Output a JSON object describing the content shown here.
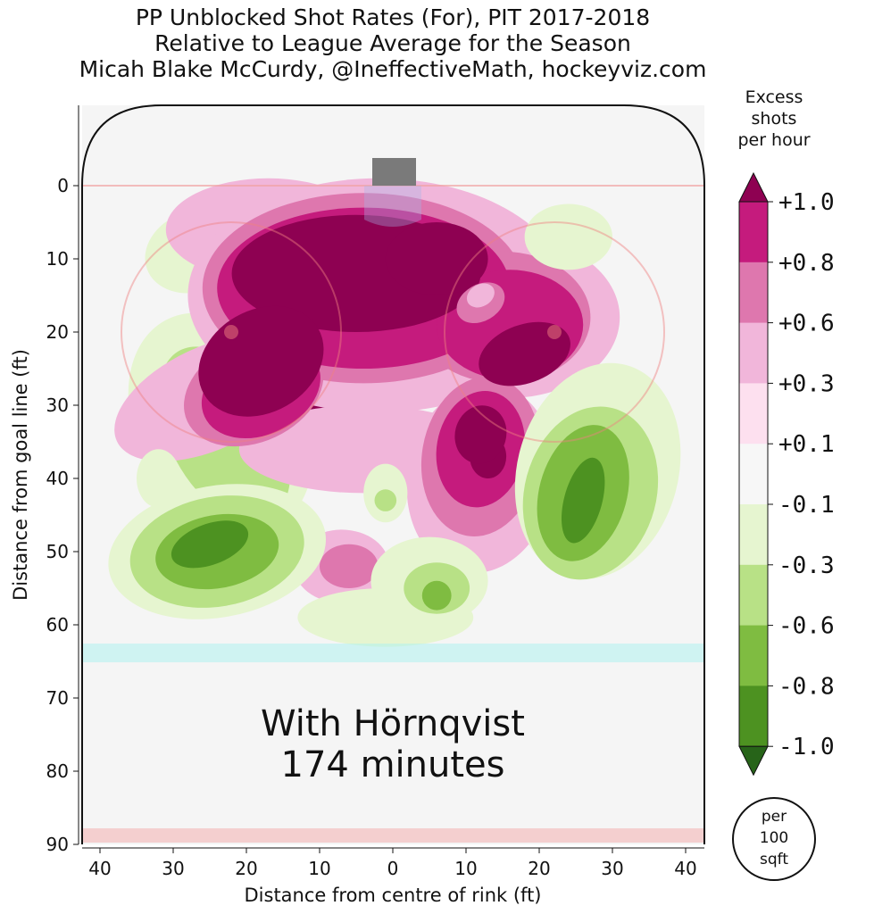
{
  "titles": [
    "PP Unblocked Shot Rates (For), PIT 2017-2018",
    "Relative to League Average for the Season",
    "Micah Blake McCurdy, @IneffectiveMath, hockeyviz.com"
  ],
  "chart_data": {
    "type": "heatmap",
    "xlabel": "Distance from centre of rink (ft)",
    "ylabel": "Distance from goal line (ft)",
    "xlim": [
      -42.5,
      42.5
    ],
    "ylim": [
      90,
      -11
    ],
    "x_ticks": [
      {
        "value": -40,
        "label": "40"
      },
      {
        "value": -30,
        "label": "30"
      },
      {
        "value": -20,
        "label": "20"
      },
      {
        "value": -10,
        "label": "10"
      },
      {
        "value": 0,
        "label": "0"
      },
      {
        "value": 10,
        "label": "10"
      },
      {
        "value": 20,
        "label": "20"
      },
      {
        "value": 30,
        "label": "30"
      },
      {
        "value": 40,
        "label": "40"
      }
    ],
    "y_ticks": [
      {
        "value": 0,
        "label": "0"
      },
      {
        "value": 10,
        "label": "10"
      },
      {
        "value": 20,
        "label": "20"
      },
      {
        "value": 30,
        "label": "30"
      },
      {
        "value": 40,
        "label": "40"
      },
      {
        "value": 50,
        "label": "50"
      },
      {
        "value": 60,
        "label": "60"
      },
      {
        "value": 70,
        "label": "70"
      },
      {
        "value": 80,
        "label": "80"
      },
      {
        "value": 90,
        "label": "90"
      }
    ],
    "colorbar": {
      "title": [
        "Excess",
        "shots",
        "per hour"
      ],
      "labels": [
        "+1.0",
        "+0.8",
        "+0.6",
        "+0.3",
        "+0.1",
        "-0.1",
        "-0.3",
        "-0.6",
        "-0.8",
        "-1.0"
      ],
      "colors": [
        "#8e0152",
        "#c51b7d",
        "#de77ae",
        "#f1b6da",
        "#fde0ef",
        "#f7f7f7",
        "#e6f5d0",
        "#b8e186",
        "#7fbc41",
        "#4d9221",
        "#276419"
      ]
    },
    "annotation": [
      "With Hörnqvist",
      "174 minutes"
    ],
    "unit_badge": [
      "per",
      "100",
      "sqft"
    ],
    "regions": [
      {
        "level": -1,
        "x": -23.5,
        "y": 32.5,
        "rx": 11.5,
        "ry": 16,
        "rot": -28
      },
      {
        "level": -2,
        "x": -23,
        "y": 34,
        "rx": 7.5,
        "ry": 13,
        "rot": -28
      },
      {
        "level": 3,
        "x": -17,
        "y": 21,
        "rx": 6.5,
        "ry": 10,
        "rot": -30
      },
      {
        "level": 4,
        "x": -10,
        "y": 25,
        "rx": 11,
        "ry": 17,
        "rot": -20
      },
      {
        "level": -1,
        "x": -27,
        "y": 9,
        "rx": 7,
        "ry": 5.5,
        "rot": -20
      },
      {
        "level": 1,
        "x": -25,
        "y": 29,
        "rx": 14,
        "ry": 7,
        "rot": -25
      },
      {
        "level": 1,
        "x": -17,
        "y": 6,
        "rx": 14,
        "ry": 7,
        "rot": 0
      },
      {
        "level": 1,
        "x": -2,
        "y": 15,
        "rx": 26,
        "ry": 16,
        "rot": 0
      },
      {
        "level": 1,
        "x": 16,
        "y": 18,
        "rx": 15,
        "ry": 11,
        "rot": 0
      },
      {
        "level": 1,
        "x": 12,
        "y": 40,
        "rx": 10,
        "ry": 13,
        "rot": 10
      },
      {
        "level": 1,
        "x": -4,
        "y": 36,
        "rx": 17,
        "ry": 6,
        "rot": 0
      },
      {
        "level": 1,
        "x": -7,
        "y": 52,
        "rx": 6.5,
        "ry": 5,
        "rot": 0
      },
      {
        "level": 2,
        "x": -4,
        "y": 14,
        "rx": 22,
        "ry": 13,
        "rot": 0
      },
      {
        "level": 2,
        "x": 15,
        "y": 18,
        "rx": 12,
        "ry": 9,
        "rot": 0
      },
      {
        "level": 2,
        "x": 12,
        "y": 37,
        "rx": 8,
        "ry": 11,
        "rot": 10
      },
      {
        "level": 2,
        "x": -19,
        "y": 28,
        "rx": 10,
        "ry": 7,
        "rot": -25
      },
      {
        "level": 2,
        "x": -6,
        "y": 52,
        "rx": 4,
        "ry": 3,
        "rot": 0
      },
      {
        "level": 3,
        "x": -4,
        "y": 14,
        "rx": 20,
        "ry": 11,
        "rot": 0
      },
      {
        "level": 3,
        "x": 16,
        "y": 19,
        "rx": 10,
        "ry": 7.5,
        "rot": 0
      },
      {
        "level": 3,
        "x": 12,
        "y": 36,
        "rx": 6,
        "ry": 8,
        "rot": 10
      },
      {
        "level": 3,
        "x": -18,
        "y": 28,
        "rx": 8.5,
        "ry": 6,
        "rot": -25
      },
      {
        "level": 4,
        "x": -5,
        "y": 12,
        "rx": 17,
        "ry": 8,
        "rot": 0
      },
      {
        "level": 4,
        "x": -18,
        "y": 24,
        "rx": 9,
        "ry": 7,
        "rot": -30
      },
      {
        "level": 4,
        "x": 6,
        "y": 10,
        "rx": 7,
        "ry": 5,
        "rot": 0
      },
      {
        "level": 4,
        "x": 18,
        "y": 23,
        "rx": 6.5,
        "ry": 4,
        "rot": -20
      },
      {
        "level": 4,
        "x": 13,
        "y": 37,
        "rx": 2.5,
        "ry": 3,
        "rot": 0
      },
      {
        "level": 2,
        "x": 12,
        "y": 16,
        "rx": 3.5,
        "ry": 2.5,
        "rot": -30
      },
      {
        "level": 1,
        "x": 12,
        "y": 15,
        "rx": 2,
        "ry": 1.5,
        "rot": -30
      },
      {
        "level": -1,
        "x": 5,
        "y": 54,
        "rx": 8,
        "ry": 6,
        "rot": 0
      },
      {
        "level": -1,
        "x": -1,
        "y": 59,
        "rx": 12,
        "ry": 4,
        "rot": 0
      },
      {
        "level": -2,
        "x": 6,
        "y": 55,
        "rx": 4.5,
        "ry": 3.5,
        "rot": 0
      },
      {
        "level": -3,
        "x": 6,
        "y": 56,
        "rx": 2,
        "ry": 2,
        "rot": 0
      },
      {
        "level": -1,
        "x": -1,
        "y": 42,
        "rx": 3,
        "ry": 4,
        "rot": 0
      },
      {
        "level": -2,
        "x": -1,
        "y": 43,
        "rx": 1.5,
        "ry": 1.5,
        "rot": 0
      },
      {
        "level": -1,
        "x": 28,
        "y": 39,
        "rx": 11,
        "ry": 15,
        "rot": 15
      },
      {
        "level": -1,
        "x": 24,
        "y": 7,
        "rx": 6,
        "ry": 4.5,
        "rot": 0
      },
      {
        "level": -1,
        "x": -32,
        "y": 40,
        "rx": 3,
        "ry": 4,
        "rot": 0
      },
      {
        "level": -2,
        "x": 27,
        "y": 42,
        "rx": 9,
        "ry": 12,
        "rot": 15
      },
      {
        "level": -3,
        "x": 26,
        "y": 42,
        "rx": 6,
        "ry": 9.5,
        "rot": 15
      },
      {
        "level": -4,
        "x": 26,
        "y": 43,
        "rx": 2.6,
        "ry": 6,
        "rot": 15
      },
      {
        "level": -1,
        "x": -24,
        "y": 50,
        "rx": 15,
        "ry": 9,
        "rot": -10
      },
      {
        "level": -2,
        "x": -24,
        "y": 50,
        "rx": 12,
        "ry": 7.5,
        "rot": -10
      },
      {
        "level": -3,
        "x": -24,
        "y": 50,
        "rx": 8.5,
        "ry": 5,
        "rot": -10
      },
      {
        "level": -4,
        "x": -25,
        "y": 49,
        "rx": 5.5,
        "ry": 2.8,
        "rot": -20
      },
      {
        "level": 4,
        "x": 12,
        "y": 34,
        "rx": 3.5,
        "ry": 4,
        "rot": 15
      }
    ]
  }
}
